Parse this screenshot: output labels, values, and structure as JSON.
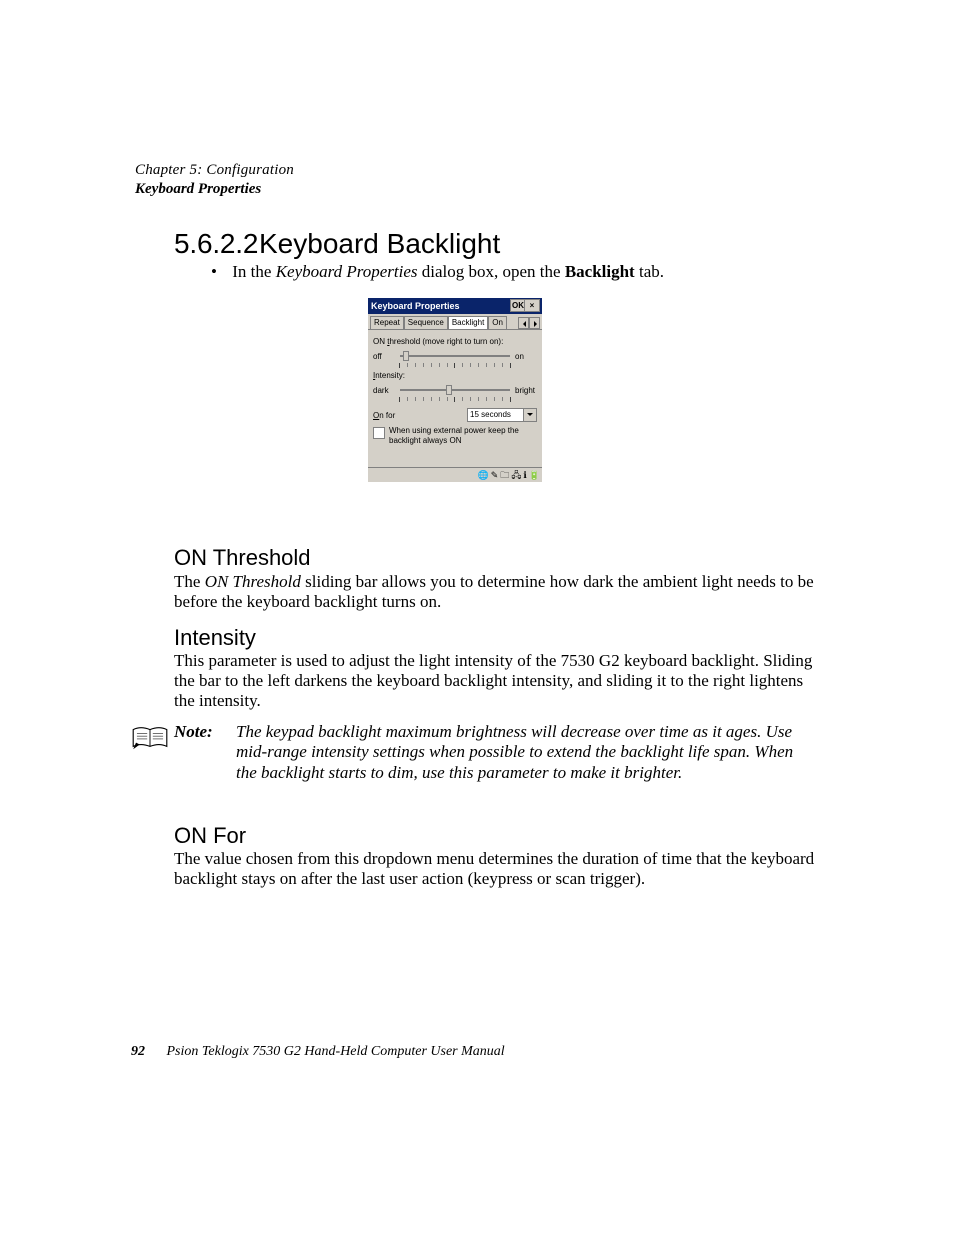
{
  "header": {
    "chapter": "Chapter 5: Configuration",
    "section": "Keyboard Properties"
  },
  "section": {
    "number": "5.6.2.2",
    "title": "Keyboard Backlight"
  },
  "bullet": {
    "pre": "In the ",
    "dlgname": "Keyboard Properties",
    "mid": " dialog box, open the ",
    "tabname": "Backlight",
    "post": " tab."
  },
  "dialog": {
    "title": "Keyboard Properties",
    "ok": "OK",
    "close": "×",
    "tabs": [
      "Repeat",
      "Sequence",
      "Backlight",
      "On"
    ],
    "active_tab_index": 2,
    "threshold": {
      "label_pre": "ON ",
      "label_u": "t",
      "label_post": "hreshold (move right to turn on):",
      "left": "off",
      "right": "on",
      "position_pct": 3
    },
    "intensity": {
      "label_pre": "",
      "label_u": "I",
      "label_post": "ntensity:",
      "left": "dark",
      "right": "bright",
      "position_pct": 42
    },
    "onfor": {
      "label_pre": "",
      "label_u": "O",
      "label_post": "n for",
      "value": "15 seconds"
    },
    "checkbox": {
      "checked": false,
      "text": "When using external power keep the backlight always ON"
    },
    "taskbar_icons": [
      "🌐",
      "✎",
      "🗀",
      "🖧",
      "ℹ",
      "🔋"
    ]
  },
  "onthreshold": {
    "title": "ON Threshold",
    "para_pre": "The ",
    "para_em": "ON Threshold",
    "para_post": " sliding bar allows you to determine how dark the ambient light needs to be before the keyboard backlight turns on."
  },
  "intensity": {
    "title": "Intensity",
    "para": "This parameter is used to adjust the light intensity of the 7530 G2 keyboard backlight. Sliding the bar to the left darkens the keyboard backlight intensity, and sliding it to the right lightens the intensity."
  },
  "note": {
    "label": "Note:",
    "text": "The keypad backlight maximum brightness will decrease over time as it ages. Use mid-range intensity settings when possible to extend the backlight life span. When the backlight starts to dim, use this parameter to make it brighter."
  },
  "onfor": {
    "title": "ON For",
    "para": "The value chosen from this dropdown menu determines the duration of time that the keyboard backlight stays on after the last user action (keypress or scan trigger)."
  },
  "footer": {
    "page": "92",
    "text": "Psion Teklogix 7530 G2 Hand-Held Computer User Manual"
  },
  "colors": {
    "dialog_title_bg": "#0a246a",
    "dialog_body_bg": "#d4d0c8",
    "border": "#808080"
  },
  "slider_tick_count": 15
}
